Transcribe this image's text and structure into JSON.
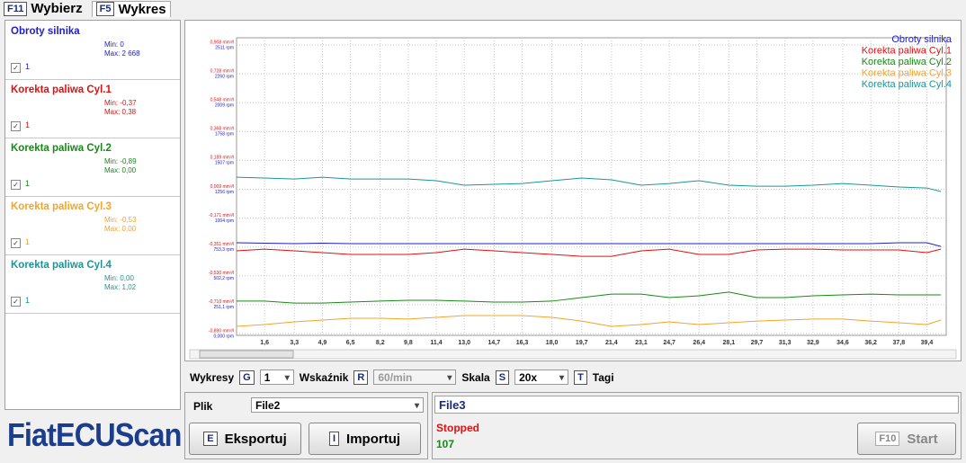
{
  "tabs": [
    {
      "key": "F11",
      "label": "Wybierz"
    },
    {
      "key": "F5",
      "label": "Wykres"
    }
  ],
  "panel": {
    "items": [
      {
        "name": "Obroty silnika",
        "min": "Min: 0",
        "max": "Max: 2 668",
        "check": "1",
        "color": "#2020c8"
      },
      {
        "name": "Korekta paliwa Cyl.1",
        "min": "Min: -0,37",
        "max": "Max: 0,38",
        "check": "1",
        "color": "#e01010"
      },
      {
        "name": "Korekta paliwa Cyl.2",
        "min": "Min: -0,89",
        "max": "Max: 0,00",
        "check": "1",
        "color": "#168a16"
      },
      {
        "name": "Korekta paliwa Cyl.3",
        "min": "Min: -0,53",
        "max": "Max: 0,00",
        "check": "1",
        "color": "#f4a428"
      },
      {
        "name": "Korekta paliwa Cyl.4",
        "min": "Min: 0,00",
        "max": "Max: 1,02",
        "check": "1",
        "color": "#1a9696"
      }
    ]
  },
  "logo": "FiatECUScan",
  "chart_data": {
    "type": "line",
    "grid": true,
    "legend": "top-right",
    "x": [
      0,
      1.6,
      3.3,
      4.9,
      6.5,
      8.2,
      9.8,
      11.4,
      13.0,
      14.7,
      16.3,
      18.0,
      19.7,
      21.4,
      23.1,
      24.7,
      26.4,
      28.1,
      29.7,
      31.3,
      32.9,
      34.6,
      36.2,
      37.8,
      39.4,
      40.2
    ],
    "xlim": [
      0,
      40.3
    ],
    "xticks": [
      {
        "value": 1.6,
        "label": "1,6"
      },
      {
        "value": 3.3,
        "label": "3,3"
      },
      {
        "value": 4.9,
        "label": "4,9"
      },
      {
        "value": 6.5,
        "label": "6,5"
      },
      {
        "value": 8.2,
        "label": "8,2"
      },
      {
        "value": 9.8,
        "label": "9,8"
      },
      {
        "value": 11.4,
        "label": "11,4"
      },
      {
        "value": 13.0,
        "label": "13,0"
      },
      {
        "value": 14.7,
        "label": "14,7"
      },
      {
        "value": 16.3,
        "label": "16,3"
      },
      {
        "value": 18.0,
        "label": "18,0"
      },
      {
        "value": 19.7,
        "label": "19,7"
      },
      {
        "value": 21.4,
        "label": "21,4"
      },
      {
        "value": 23.1,
        "label": "23,1"
      },
      {
        "value": 24.7,
        "label": "24,7"
      },
      {
        "value": 26.4,
        "label": "26,4"
      },
      {
        "value": 28.1,
        "label": "28,1"
      },
      {
        "value": 29.7,
        "label": "29,7"
      },
      {
        "value": 31.3,
        "label": "31,3"
      },
      {
        "value": 32.9,
        "label": "32,9"
      },
      {
        "value": 34.6,
        "label": "34,6"
      },
      {
        "value": 36.2,
        "label": "36,2"
      },
      {
        "value": 37.8,
        "label": "37,8"
      },
      {
        "value": 39.4,
        "label": "39,4"
      }
    ],
    "ylim": [
      -0.89,
      0.908
    ],
    "yticks": [
      {
        "value": 0.908,
        "label": "0,908 mm³/l"
      },
      {
        "value": 0.728,
        "label": "0,728 mm³/l"
      },
      {
        "value": 0.548,
        "label": "0,548 mm³/l"
      },
      {
        "value": 0.368,
        "label": "0,368 mm³/l"
      },
      {
        "value": 0.189,
        "label": "0,189 mm³/l"
      },
      {
        "value": 0.009,
        "label": "0,009 mm³/l"
      },
      {
        "value": -0.171,
        "label": "-0,171 mm³/l"
      },
      {
        "value": -0.351,
        "label": "-0,351 mm³/l"
      },
      {
        "value": -0.53,
        "label": "-0,530 mm³/l"
      },
      {
        "value": -0.71,
        "label": "-0,710 mm³/l"
      },
      {
        "value": -0.89,
        "label": "-0,890 mm³/l"
      }
    ],
    "y2lim": [
      0,
      2511
    ],
    "y2ticks": [
      {
        "value": 2511,
        "label": "2511 rpm"
      },
      {
        "value": 2260,
        "label": "2260 rpm"
      },
      {
        "value": 2009,
        "label": "2009 rpm"
      },
      {
        "value": 1758,
        "label": "1758 rpm"
      },
      {
        "value": 1507,
        "label": "1507 rpm"
      },
      {
        "value": 1256,
        "label": "1256 rpm"
      },
      {
        "value": 1004,
        "label": "1004 rpm"
      },
      {
        "value": 753.3,
        "label": "753,3 rpm"
      },
      {
        "value": 502.2,
        "label": "502,2 rpm"
      },
      {
        "value": 251.1,
        "label": "251,1 rpm"
      },
      {
        "value": 0,
        "label": "0,000 rpm"
      }
    ],
    "series": [
      {
        "name": "Obroty silnika",
        "color": "#2020c8",
        "axis": "y2",
        "values": [
          790,
          786,
          782,
          786,
          782,
          782,
          782,
          782,
          782,
          782,
          782,
          782,
          782,
          782,
          782,
          782,
          782,
          782,
          782,
          782,
          782,
          782,
          782,
          790,
          790,
          758
        ]
      },
      {
        "name": "Korekta paliwa Cyl.1",
        "color": "#e01010",
        "values": [
          -0.375,
          -0.364,
          -0.375,
          -0.386,
          -0.397,
          -0.397,
          -0.397,
          -0.386,
          -0.364,
          -0.375,
          -0.386,
          -0.397,
          -0.409,
          -0.409,
          -0.375,
          -0.364,
          -0.397,
          -0.397,
          -0.369,
          -0.364,
          -0.364,
          -0.369,
          -0.369,
          -0.369,
          -0.386,
          -0.364
        ]
      },
      {
        "name": "Korekta paliwa Cyl.2",
        "color": "#168a16",
        "values": [
          -0.688,
          -0.688,
          -0.7,
          -0.7,
          -0.694,
          -0.688,
          -0.683,
          -0.683,
          -0.688,
          -0.694,
          -0.694,
          -0.688,
          -0.666,
          -0.644,
          -0.644,
          -0.666,
          -0.655,
          -0.632,
          -0.666,
          -0.666,
          -0.655,
          -0.649,
          -0.644,
          -0.649,
          -0.649,
          -0.649
        ]
      },
      {
        "name": "Korekta paliwa Cyl.3",
        "color": "#f4a428",
        "values": [
          -0.845,
          -0.834,
          -0.817,
          -0.806,
          -0.795,
          -0.795,
          -0.8,
          -0.789,
          -0.778,
          -0.778,
          -0.778,
          -0.789,
          -0.812,
          -0.845,
          -0.834,
          -0.817,
          -0.834,
          -0.823,
          -0.812,
          -0.806,
          -0.8,
          -0.8,
          -0.812,
          -0.823,
          -0.834,
          -0.806
        ]
      },
      {
        "name": "Korekta paliwa Cyl.4",
        "color": "#1a9696",
        "values": [
          0.084,
          0.079,
          0.073,
          0.084,
          0.073,
          0.073,
          0.073,
          0.062,
          0.034,
          0.04,
          0.045,
          0.062,
          0.079,
          0.068,
          0.034,
          0.045,
          0.062,
          0.034,
          0.028,
          0.028,
          0.034,
          0.045,
          0.034,
          0.023,
          0.017,
          -0.005
        ]
      }
    ]
  },
  "toolbar": {
    "charts_label": "Wykresy",
    "charts_key": "G",
    "charts_value": "1",
    "pointer_label": "Wskaźnik",
    "pointer_key": "R",
    "pointer_value": "60/min",
    "scale_label": "Skala",
    "scale_key": "S",
    "scale_value": "20x",
    "tags_key": "T",
    "tags_label": "Tagi"
  },
  "file_panel": {
    "label": "Plik",
    "value": "File2",
    "export_key": "E",
    "export": "Eksportuj",
    "import_key": "I",
    "import": "Importuj"
  },
  "status": {
    "file": "File3",
    "state": "Stopped",
    "count": "107",
    "start_key": "F10",
    "start": "Start"
  }
}
